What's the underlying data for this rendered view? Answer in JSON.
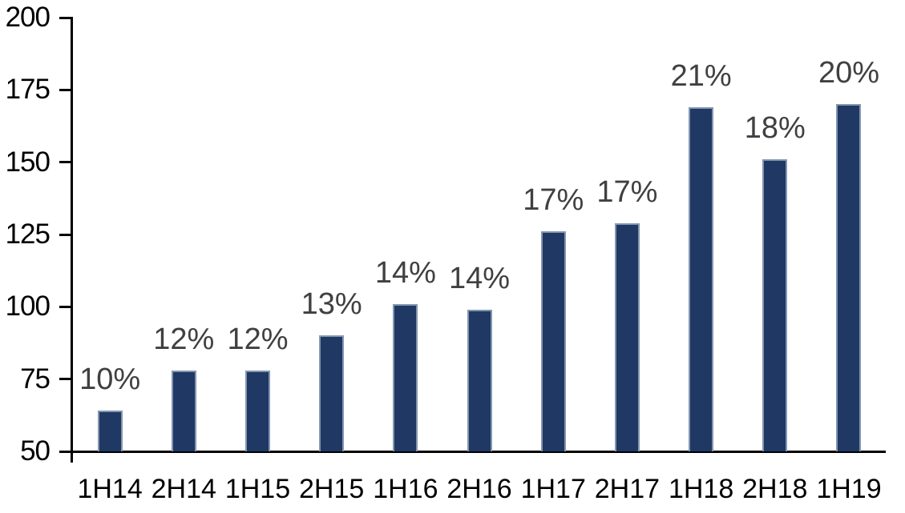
{
  "chart_data": {
    "type": "bar",
    "title": "",
    "xlabel": "",
    "ylabel": "",
    "categories": [
      "1H14",
      "2H14",
      "1H15",
      "2H15",
      "1H16",
      "2H16",
      "1H17",
      "2H17",
      "1H18",
      "2H18",
      "1H19"
    ],
    "values": [
      64,
      78,
      78,
      90,
      101,
      99,
      126,
      129,
      169,
      151,
      170
    ],
    "bar_labels": [
      "10%",
      "12%",
      "12%",
      "13%",
      "14%",
      "14%",
      "17%",
      "17%",
      "21%",
      "18%",
      "20%"
    ],
    "ylim": [
      50,
      200
    ],
    "y_ticks_top_to_bottom": [
      200,
      175,
      150,
      125,
      100,
      75,
      50
    ],
    "grid": "off",
    "legend": "none",
    "colors": {
      "bar_fill": "#1F3864",
      "bar_border": "#8496B0",
      "data_label_text": "#404040",
      "axis_text": "#000000",
      "axis_line": "#000000",
      "background": "#FFFFFF"
    }
  }
}
